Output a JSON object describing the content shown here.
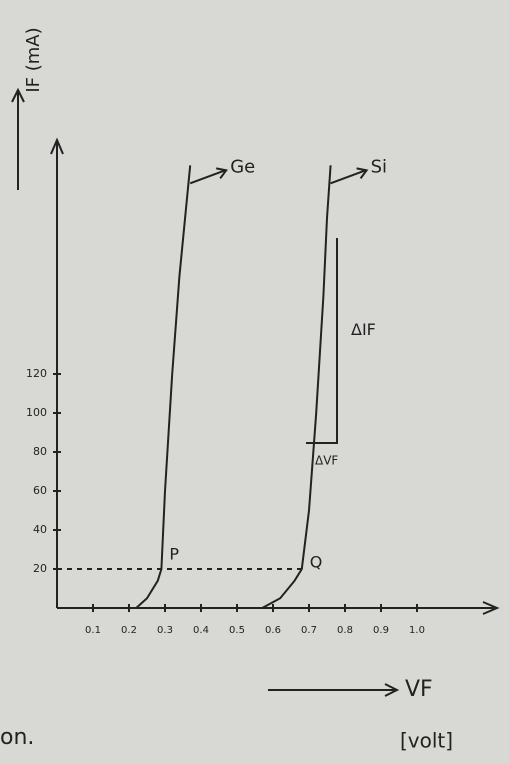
{
  "chart_data": {
    "type": "line",
    "x_label": "VF",
    "x_unit": "[volt]",
    "y_label": "IF (mA)",
    "xlim": [
      0,
      1.2
    ],
    "ylim": [
      0,
      240
    ],
    "xticks": [
      0.1,
      0.2,
      0.3,
      0.4,
      0.5,
      0.6,
      0.7,
      0.8,
      0.9,
      {
        "value": 1,
        "label": "1.0"
      }
    ],
    "yticks": [
      20,
      40,
      60,
      80,
      100,
      120
    ],
    "series": [
      {
        "name": "Ge",
        "color": "#222222",
        "x": [
          0.22,
          0.25,
          0.28,
          0.29,
          0.3,
          0.32,
          0.34,
          0.37
        ],
        "values": [
          0,
          5,
          14,
          20,
          60,
          120,
          170,
          227
        ]
      },
      {
        "name": "Si",
        "color": "#222222",
        "x": [
          0.57,
          0.62,
          0.66,
          0.68,
          0.7,
          0.72,
          0.74,
          0.75,
          0.76
        ],
        "values": [
          0,
          5,
          14,
          20,
          50,
          100,
          160,
          200,
          227
        ]
      }
    ],
    "annotations": {
      "p": "P",
      "q": "Q",
      "delta_i": "ΔIF",
      "delta_v": "ΔVF",
      "fragment": "on."
    }
  }
}
